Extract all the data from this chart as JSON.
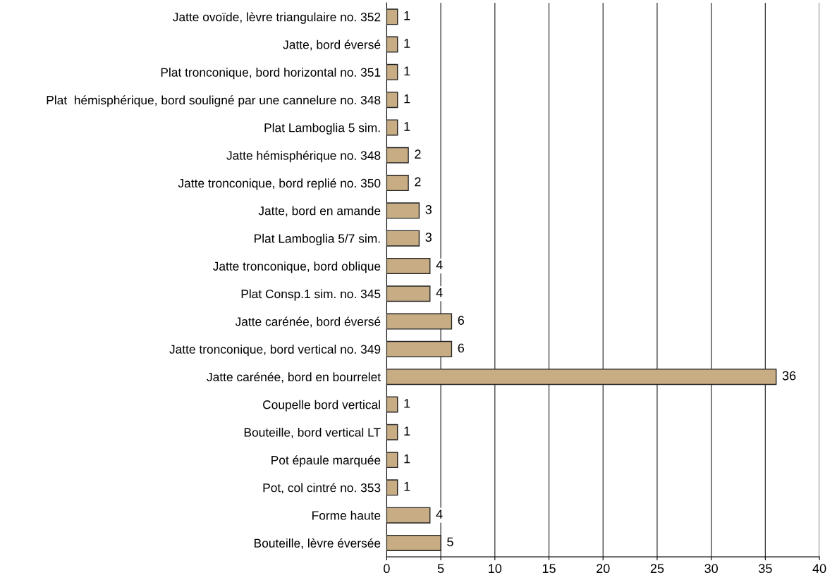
{
  "chart_data": {
    "type": "bar",
    "orientation": "horizontal",
    "categories": [
      "Jatte ovoïde, lèvre triangulaire no. 352",
      "Jatte, bord éversé",
      "Plat tronconique, bord horizontal no. 351",
      "Plat  hémisphérique, bord souligné par une cannelure no. 348",
      "Plat Lamboglia 5 sim.",
      "Jatte hémisphérique no. 348",
      "Jatte tronconique, bord replié no. 350",
      "Jatte, bord en amande",
      "Plat Lamboglia 5/7 sim.",
      "Jatte tronconique, bord oblique",
      "Plat Consp.1 sim. no. 345",
      "Jatte carénée, bord éversé",
      "Jatte tronconique, bord vertical no. 349",
      "Jatte carénée, bord en bourrelet",
      "Coupelle bord vertical",
      "Bouteille, bord vertical LT",
      "Pot épaule marquée",
      "Pot, col cintré no. 353",
      "Forme haute",
      "Bouteille, lèvre éversée"
    ],
    "values": [
      1,
      1,
      1,
      1,
      1,
      2,
      2,
      3,
      3,
      4,
      4,
      6,
      6,
      36,
      1,
      1,
      1,
      1,
      4,
      5
    ],
    "color": "#c8ad84",
    "xlim": [
      0,
      40
    ],
    "xticks": [
      0,
      5,
      10,
      15,
      20,
      25,
      30,
      35,
      40
    ],
    "grid": "x",
    "data_labels": true
  }
}
